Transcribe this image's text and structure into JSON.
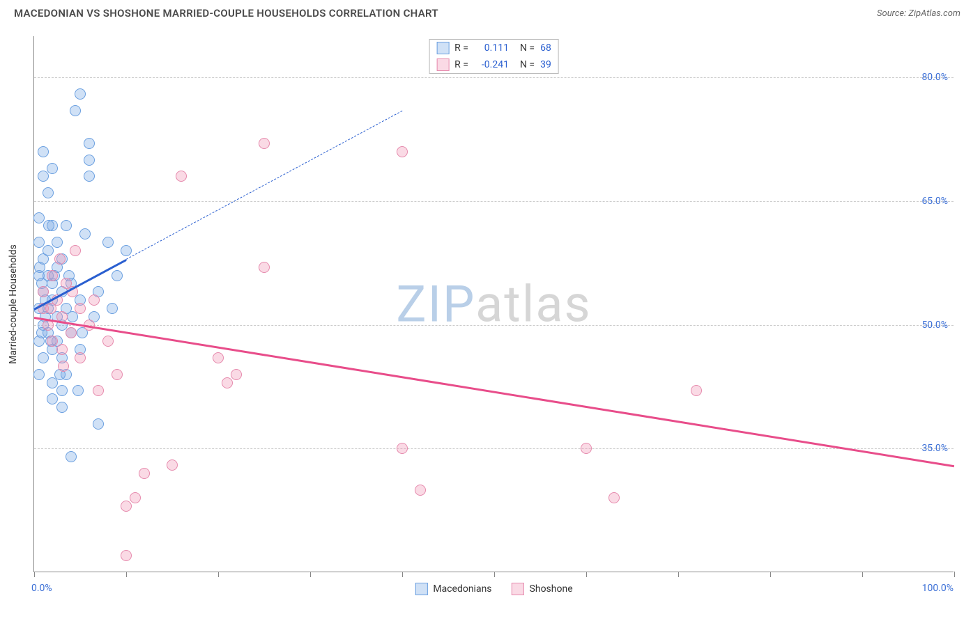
{
  "title": "MACEDONIAN VS SHOSHONE MARRIED-COUPLE HOUSEHOLDS CORRELATION CHART",
  "source": "Source: ZipAtlas.com",
  "yaxis_title": "Married-couple Households",
  "chart": {
    "type": "scatter",
    "xlim": [
      0,
      100
    ],
    "ylim": [
      20,
      85
    ],
    "xticks": [
      0,
      10,
      20,
      30,
      40,
      50,
      60,
      70,
      80,
      90,
      100
    ],
    "xtick_labels": {
      "0": "0.0%",
      "100": "100.0%"
    },
    "yticks": [
      35,
      50,
      65,
      80
    ],
    "ytick_labels": {
      "35": "35.0%",
      "50": "50.0%",
      "65": "65.0%",
      "80": "80.0%"
    },
    "grid_color": "#cccccc",
    "axis_color": "#888888",
    "background_color": "#ffffff",
    "point_radius": 8,
    "point_stroke_width": 1.5
  },
  "series": [
    {
      "name": "Macedonians",
      "fill": "rgba(120,170,230,0.35)",
      "stroke": "#6a9fe0",
      "reg_color": "#2a5fd0",
      "R": "0.111",
      "N": "68",
      "regression": {
        "x0": 0,
        "y0": 52,
        "x1": 10,
        "y1": 58,
        "x2": 40,
        "y2": 76
      },
      "points": [
        [
          0.5,
          52
        ],
        [
          0.5,
          56
        ],
        [
          0.5,
          60
        ],
        [
          0.5,
          48
        ],
        [
          0.5,
          44
        ],
        [
          0.5,
          63
        ],
        [
          1,
          54
        ],
        [
          1,
          58
        ],
        [
          1,
          50
        ],
        [
          1,
          46
        ],
        [
          1,
          71
        ],
        [
          1,
          68
        ],
        [
          1.5,
          52
        ],
        [
          1.5,
          56
        ],
        [
          1.5,
          59
        ],
        [
          1.5,
          49
        ],
        [
          1.5,
          66
        ],
        [
          2,
          53
        ],
        [
          2,
          55
        ],
        [
          2,
          43
        ],
        [
          2,
          62
        ],
        [
          2,
          69
        ],
        [
          2,
          47
        ],
        [
          2.5,
          51
        ],
        [
          2.5,
          57
        ],
        [
          2.5,
          48
        ],
        [
          2.5,
          60
        ],
        [
          3,
          54
        ],
        [
          3,
          46
        ],
        [
          3,
          50
        ],
        [
          3,
          58
        ],
        [
          3,
          40
        ],
        [
          3.5,
          52
        ],
        [
          3.5,
          44
        ],
        [
          3.5,
          62
        ],
        [
          4,
          49
        ],
        [
          4,
          55
        ],
        [
          4.5,
          76
        ],
        [
          5,
          78
        ],
        [
          5,
          53
        ],
        [
          5,
          47
        ],
        [
          5.5,
          61
        ],
        [
          6,
          70
        ],
        [
          6,
          72
        ],
        [
          6,
          68
        ],
        [
          6.5,
          51
        ],
        [
          7,
          38
        ],
        [
          7,
          54
        ],
        [
          8,
          60
        ],
        [
          8.5,
          52
        ],
        [
          9,
          56
        ],
        [
          10,
          59
        ],
        [
          2,
          41
        ],
        [
          3,
          42
        ],
        [
          1.2,
          53
        ],
        [
          1.2,
          51
        ],
        [
          0.8,
          49
        ],
        [
          0.8,
          55
        ],
        [
          1.8,
          48
        ],
        [
          2.2,
          56
        ],
        [
          4.2,
          51
        ],
        [
          5.2,
          49
        ],
        [
          3.8,
          56
        ],
        [
          2.8,
          44
        ],
        [
          1.6,
          62
        ],
        [
          0.6,
          57
        ],
        [
          4.8,
          42
        ],
        [
          4,
          34
        ]
      ]
    },
    {
      "name": "Shoshone",
      "fill": "rgba(240,150,180,0.35)",
      "stroke": "#e68aad",
      "reg_color": "#e84d8a",
      "R": "-0.241",
      "N": "39",
      "regression": {
        "x0": 0,
        "y0": 51,
        "x1": 100,
        "y1": 33
      },
      "points": [
        [
          1,
          52
        ],
        [
          1,
          54
        ],
        [
          1.5,
          50
        ],
        [
          2,
          48
        ],
        [
          2,
          56
        ],
        [
          2.5,
          53
        ],
        [
          3,
          51
        ],
        [
          3,
          47
        ],
        [
          3.5,
          55
        ],
        [
          4,
          49
        ],
        [
          4.5,
          59
        ],
        [
          5,
          52
        ],
        [
          5,
          46
        ],
        [
          6,
          50
        ],
        [
          6.5,
          53
        ],
        [
          7,
          42
        ],
        [
          8,
          48
        ],
        [
          9,
          44
        ],
        [
          10,
          22
        ],
        [
          10,
          28
        ],
        [
          11,
          29
        ],
        [
          12,
          32
        ],
        [
          15,
          33
        ],
        [
          16,
          68
        ],
        [
          20,
          46
        ],
        [
          21,
          43
        ],
        [
          22,
          44
        ],
        [
          25,
          57
        ],
        [
          25,
          72
        ],
        [
          40,
          71
        ],
        [
          40,
          35
        ],
        [
          42,
          30
        ],
        [
          60,
          35
        ],
        [
          63,
          29
        ],
        [
          72,
          42
        ],
        [
          2.8,
          58
        ],
        [
          3.2,
          45
        ],
        [
          4.2,
          54
        ],
        [
          1.8,
          52
        ]
      ]
    }
  ],
  "legend_top": {
    "r_label": "R =",
    "n_label": "N ="
  },
  "legend_bottom": [
    {
      "label": "Macedonians"
    },
    {
      "label": "Shoshone"
    }
  ],
  "watermark": {
    "zip": "ZIP",
    "atlas": "atlas",
    "zip_color": "#b9cfe8",
    "atlas_color": "#d6d6d6"
  }
}
